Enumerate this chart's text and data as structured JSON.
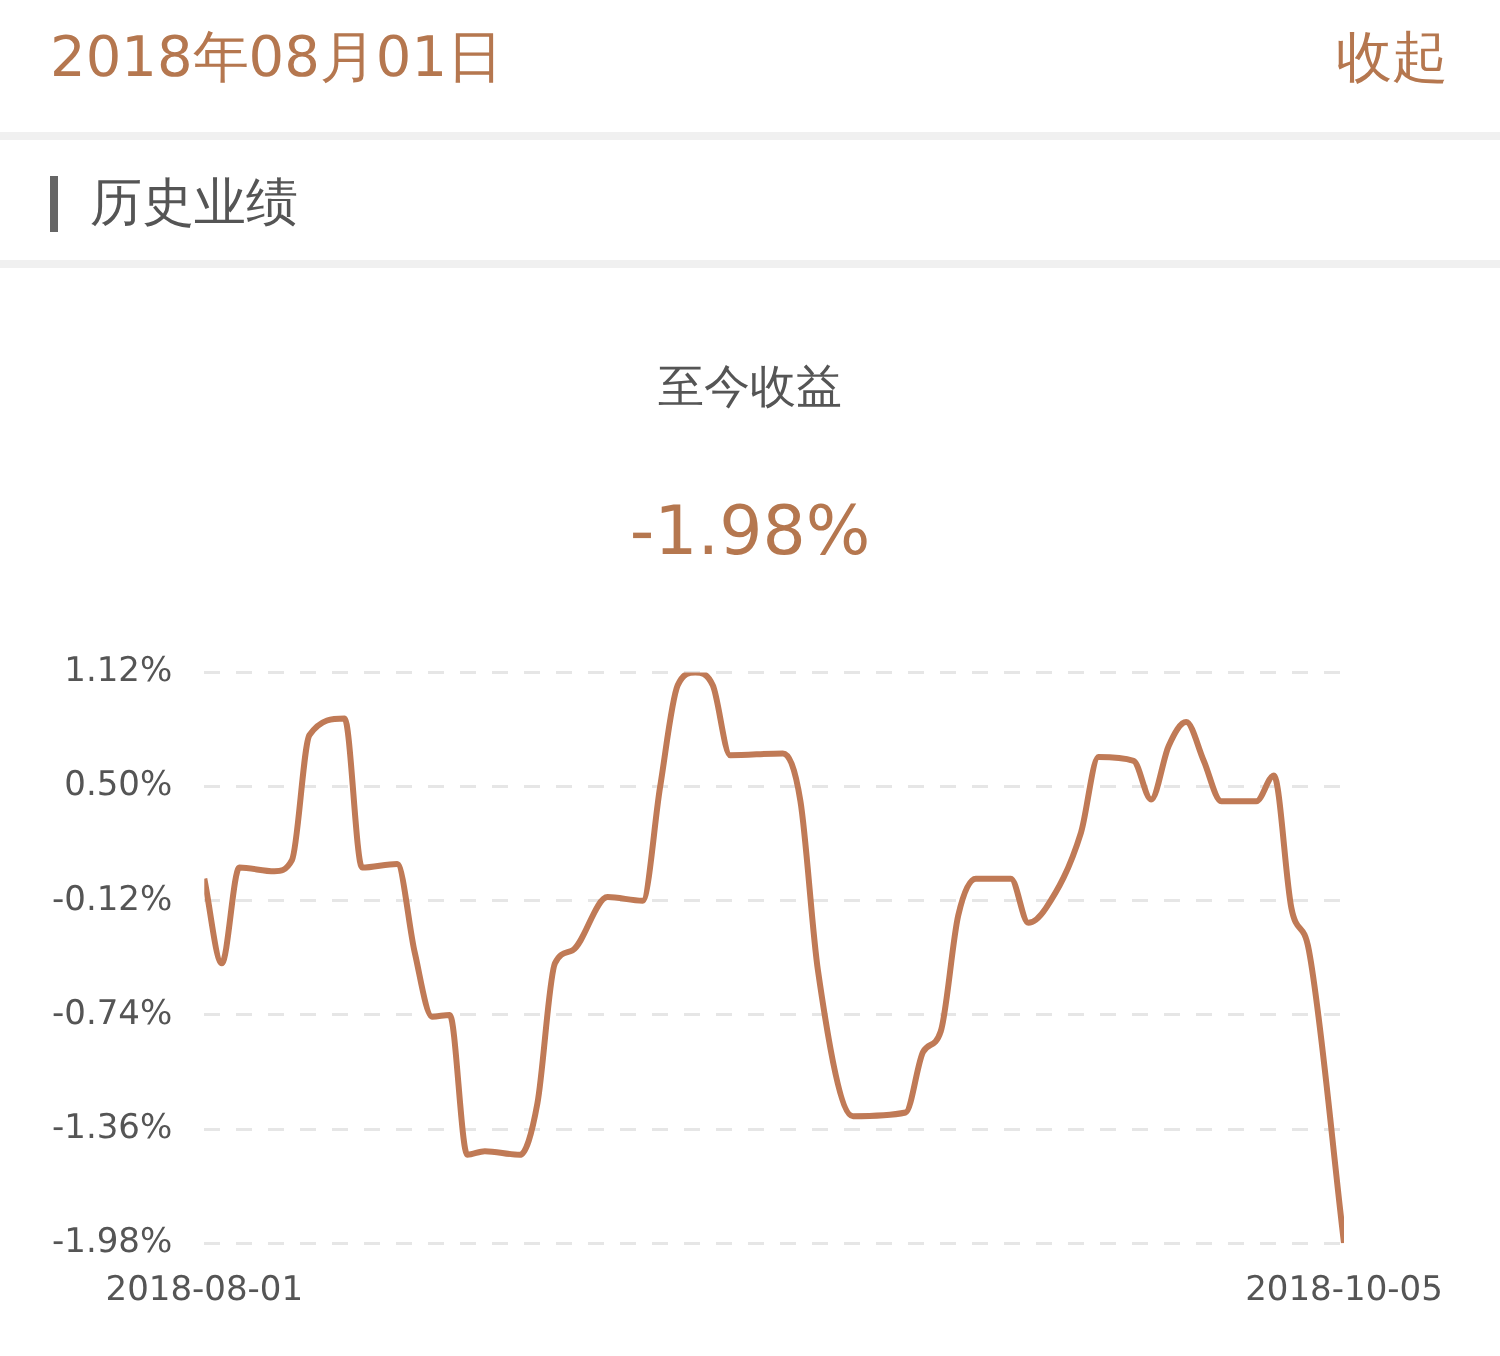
{
  "chart_data": {
    "type": "line",
    "title": "至今收益",
    "subtitle": "-1.98%",
    "annotations": [
      "2018年08月01日",
      "收起",
      "历史业绩"
    ],
    "x": [
      "2018-08-01",
      "2018-08-02",
      "2018-08-03",
      "2018-08-05",
      "2018-08-06",
      "2018-08-07",
      "2018-08-09",
      "2018-08-10",
      "2018-08-12",
      "2018-08-13",
      "2018-08-14",
      "2018-08-15",
      "2018-08-16",
      "2018-08-17",
      "2018-08-19",
      "2018-08-20",
      "2018-08-21",
      "2018-08-22",
      "2018-08-24",
      "2018-08-26",
      "2018-08-27",
      "2018-08-28",
      "2018-08-29",
      "2018-08-30",
      "2018-08-31",
      "2018-09-03",
      "2018-09-04",
      "2018-09-05",
      "2018-09-07",
      "2018-09-10",
      "2018-09-11",
      "2018-09-12",
      "2018-09-13",
      "2018-09-14",
      "2018-09-16",
      "2018-09-17",
      "2018-09-18",
      "2018-09-20",
      "2018-09-21",
      "2018-09-23",
      "2018-09-24",
      "2018-09-25",
      "2018-09-26",
      "2018-09-27",
      "2018-09-28",
      "2018-09-30",
      "2018-10-01",
      "2018-10-02",
      "2018-10-03",
      "2018-10-05"
    ],
    "series": [
      {
        "color": "#c07a56",
        "values": [
          0.0,
          -0.46,
          0.06,
          0.04,
          0.1,
          0.78,
          0.87,
          0.06,
          0.08,
          -0.4,
          -0.75,
          -0.74,
          -1.5,
          -1.48,
          -1.5,
          -1.22,
          -0.46,
          -0.39,
          -0.1,
          -0.12,
          0.5,
          1.05,
          1.12,
          1.05,
          0.67,
          0.68,
          0.42,
          -0.5,
          -1.29,
          -1.27,
          -0.94,
          -0.83,
          -0.2,
          0.0,
          0.0,
          -0.24,
          -0.16,
          0.25,
          0.66,
          0.64,
          0.43,
          0.72,
          0.85,
          0.64,
          0.42,
          0.42,
          0.56,
          -0.16,
          -0.39,
          -1.98
        ]
      }
    ],
    "xlim": [
      "2018-08-01",
      "2018-10-05"
    ],
    "xticks": [
      "2018-08-01",
      "2018-10-05"
    ],
    "ylim": [
      -1.98,
      1.12
    ],
    "yticks": [
      {
        "value": 1.12,
        "label": "1.12%"
      },
      {
        "value": 0.5,
        "label": "0.50%"
      },
      {
        "value": -0.12,
        "label": "-0.12%"
      },
      {
        "value": -0.74,
        "label": "-0.74%"
      },
      {
        "value": -1.36,
        "label": "-1.36%"
      },
      {
        "value": -1.98,
        "label": "-1.98%"
      }
    ],
    "grid": "y",
    "legend": false,
    "marker": "none",
    "line_style": "solid"
  }
}
